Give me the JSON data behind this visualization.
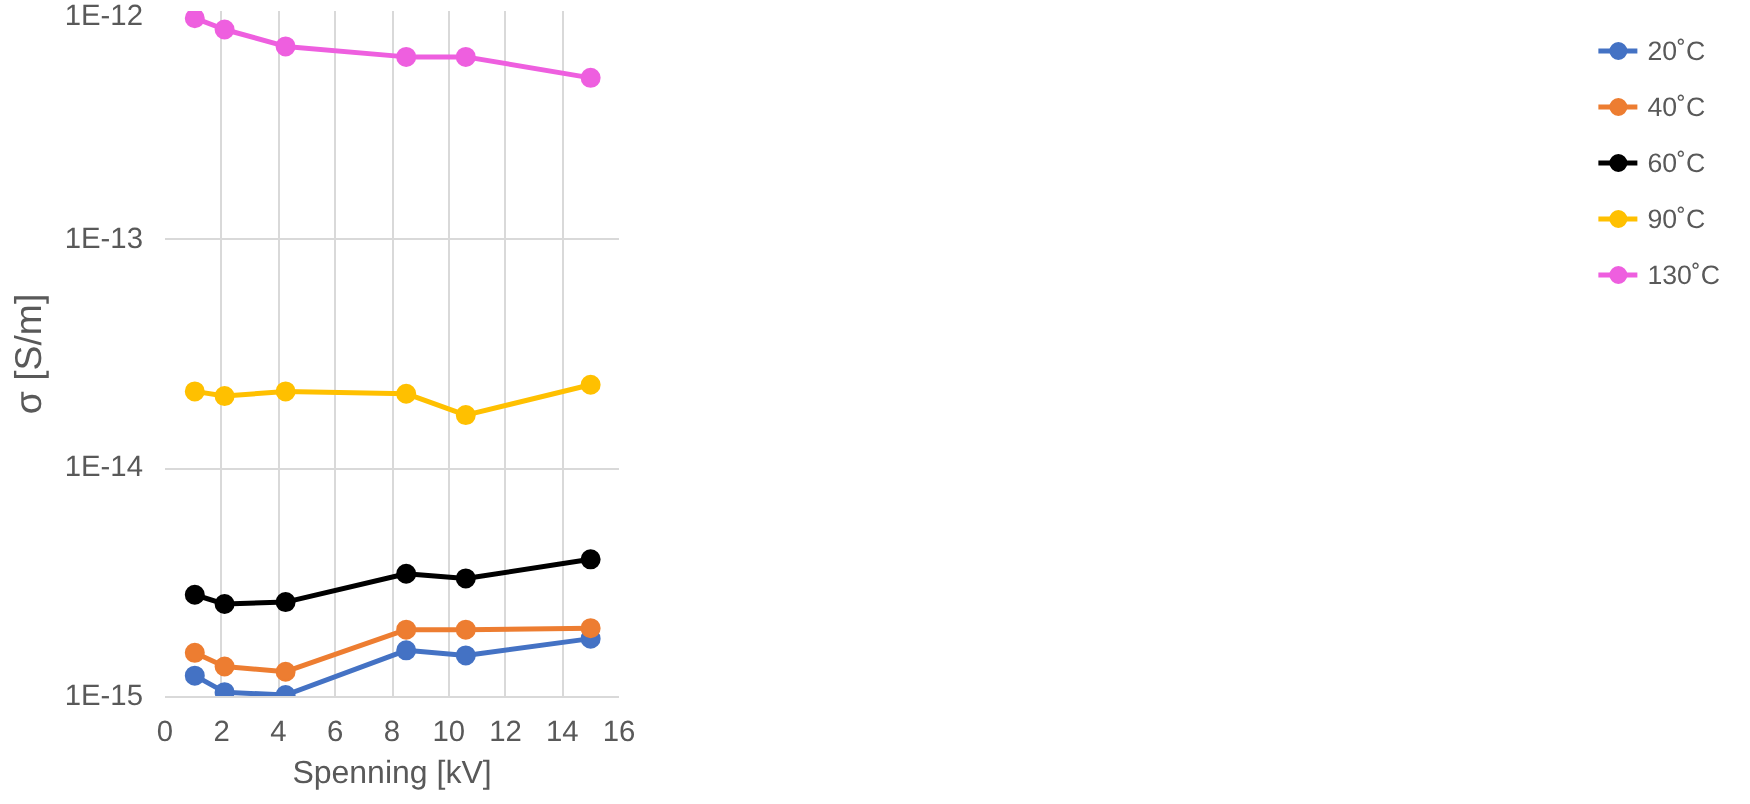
{
  "chart_data": {
    "type": "line",
    "xlabel": "Spenning [kV]",
    "ylabel": "σ [S/m]",
    "x": [
      1.05,
      2.1,
      4.25,
      8.5,
      10.6,
      15
    ],
    "series": [
      {
        "name": "20˚C",
        "color": "#4472c4",
        "values": [
          1.24e-15,
          1.05e-15,
          1.02e-15,
          1.6e-15,
          1.52e-15,
          1.8e-15
        ]
      },
      {
        "name": "40˚C",
        "color": "#ed7d31",
        "values": [
          1.56e-15,
          1.36e-15,
          1.29e-15,
          1.97e-15,
          1.97e-15,
          2e-15
        ]
      },
      {
        "name": "60˚C",
        "color": "#000000",
        "values": [
          2.8e-15,
          2.55e-15,
          2.6e-15,
          3.46e-15,
          3.3e-15,
          4e-15
        ]
      },
      {
        "name": "90˚C",
        "color": "#ffc000",
        "values": [
          2.17e-14,
          2.07e-14,
          2.17e-14,
          2.12e-14,
          1.71e-14,
          2.32e-14
        ]
      },
      {
        "name": "130˚C",
        "color": "#ee5fdf",
        "values": [
          9.3e-13,
          8.3e-13,
          7e-13,
          6.3e-13,
          6.3e-13,
          5.1e-13
        ]
      }
    ],
    "xlim": [
      0,
      16
    ],
    "xticks": [
      0,
      2,
      4,
      6,
      8,
      10,
      12,
      14,
      16
    ],
    "ylim": [
      1e-15,
      1e-12
    ],
    "yticks": [
      {
        "value": 1e-15,
        "label": "1E-15"
      },
      {
        "value": 1e-14,
        "label": "1E-14"
      },
      {
        "value": 1e-13,
        "label": "1E-13"
      },
      {
        "value": 1e-12,
        "label": "1E-12"
      }
    ],
    "log": "y",
    "grid": true,
    "legend": "right",
    "marker": "circle",
    "line_style": "solid"
  }
}
